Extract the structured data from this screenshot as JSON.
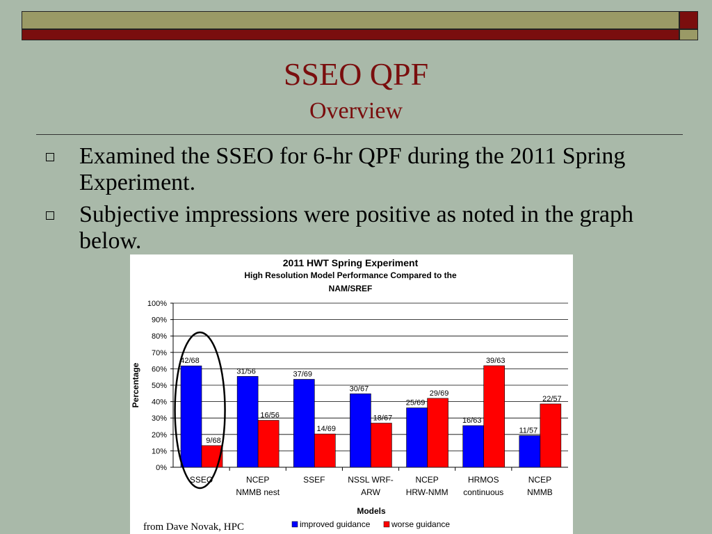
{
  "slide": {
    "title": "SSEO QPF",
    "subtitle": "Overview",
    "bullets": [
      "Examined the SSEO for 6-hr QPF during the 2011 Spring Experiment.",
      "Subjective impressions were positive as noted in the graph below."
    ],
    "credit": "from  Dave Novak, HPC",
    "colors": {
      "maroon": "#7a0e0e",
      "olive": "#9a9a66",
      "background": "#a9b9a9"
    }
  },
  "chart_data": {
    "type": "bar",
    "title": "2011 HWT Spring Experiment",
    "subtitle_lines": [
      "High Resolution Model Performance Compared to the",
      "NAM/SREF"
    ],
    "xlabel": "Models",
    "ylabel": "Percentage",
    "ylim": [
      0,
      100
    ],
    "yticks": [
      "0%",
      "10%",
      "20%",
      "30%",
      "40%",
      "50%",
      "60%",
      "70%",
      "80%",
      "90%",
      "100%"
    ],
    "grid": true,
    "categories": [
      [
        "SSEO"
      ],
      [
        "NCEP",
        "NMMB nest"
      ],
      [
        "SSEF"
      ],
      [
        "NSSL WRF-",
        "ARW"
      ],
      [
        "NCEP",
        "HRW-NMM"
      ],
      [
        "HRMOS",
        "continuous"
      ],
      [
        "NCEP",
        "NMMB"
      ]
    ],
    "series": [
      {
        "name": "improved guidance",
        "color": "#0000ff",
        "values": [
          61.8,
          55.4,
          53.6,
          44.8,
          36.2,
          25.4,
          19.3
        ],
        "labels": [
          "42/68",
          "31/56",
          "37/69",
          "30/67",
          "25/69",
          "16/63",
          "11/57"
        ]
      },
      {
        "name": "worse guidance",
        "color": "#ff0000",
        "values": [
          13.2,
          28.6,
          20.3,
          26.9,
          42.0,
          61.9,
          38.6
        ],
        "labels": [
          "9/68",
          "16/56",
          "14/69",
          "18/67",
          "29/69",
          "39/63",
          "22/57"
        ]
      }
    ],
    "legend": "bottom",
    "annotation": "ellipse circling SSEO"
  }
}
